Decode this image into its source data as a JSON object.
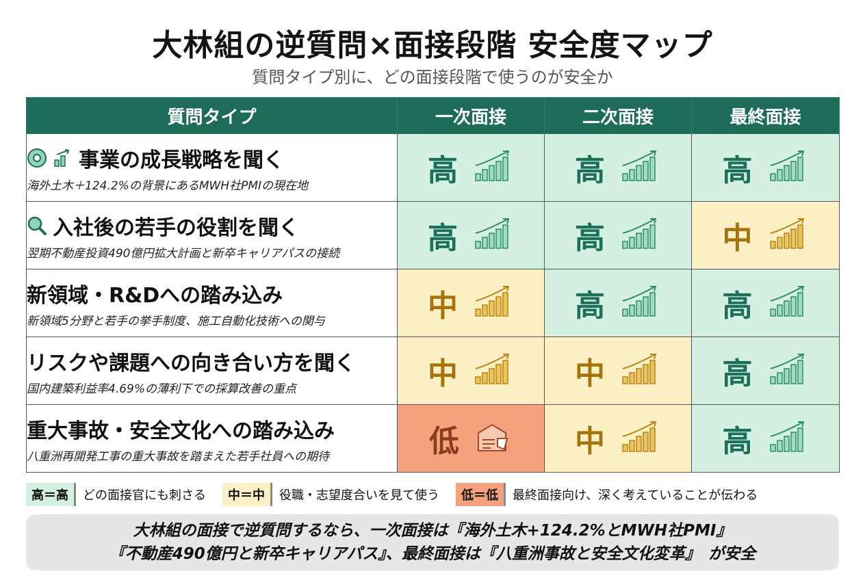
{
  "header": {
    "title": "大林組の逆質問×面接段階 安全度マップ",
    "subtitle": "質問タイプ別に、どの面接段階で使うのが安全か"
  },
  "table": {
    "columns": [
      "質問タイプ",
      "一次面接",
      "二次面接",
      "最終面接"
    ],
    "rows": [
      {
        "title": "事業の成長戦略を聞く",
        "sub": "海外土木＋124.2%の背景にあるMWH社PMIの現在地",
        "icons": [
          "disc-icon",
          "growth-chart-icon"
        ],
        "levels": [
          "高",
          "高",
          "高"
        ],
        "level_keys": [
          "high",
          "high",
          "high"
        ]
      },
      {
        "title": "入社後の若手の役割を聞く",
        "sub": "翌期不動産投資490億円拡大計画と新卒キャリアパスの接続",
        "icons": [
          "search-icon"
        ],
        "levels": [
          "高",
          "高",
          "中"
        ],
        "level_keys": [
          "high",
          "high",
          "mid"
        ]
      },
      {
        "title": "新領域・R&Dへの踏み込み",
        "sub": "新領域5分野と若手の挙手制度、施工自動化技術への関与",
        "icons": [],
        "levels": [
          "中",
          "高",
          "高"
        ],
        "level_keys": [
          "mid",
          "high",
          "high"
        ]
      },
      {
        "title": "リスクや課題への向き合い方を聞く",
        "sub": "国内建築利益率4.69%の薄利下での採算改善の重点",
        "icons": [],
        "levels": [
          "中",
          "中",
          "高"
        ],
        "level_keys": [
          "mid",
          "mid",
          "high"
        ]
      },
      {
        "title": "重大事故・安全文化への踏み込み",
        "sub": "八重洲再開発工事の重大事故を踏まえた若手社員への期待",
        "icons": [],
        "levels": [
          "低",
          "中",
          "高"
        ],
        "level_keys": [
          "low",
          "mid",
          "high"
        ]
      }
    ]
  },
  "legend": {
    "high_chip": "高＝高",
    "high_desc": "どの面接官にも刺さる",
    "mid_chip": "中＝中",
    "mid_desc": "役職・志望度合いを見て使う",
    "low_chip": "低＝低",
    "low_desc": "最終面接向け、深く考えていることが伝わる"
  },
  "summary": {
    "line1": "大林組の面接で逆質問するなら、一次面接は『海外土木+124.2%とMWH社PMI』",
    "line2": "『不動産490億円と新卒キャリアパス』、最終面接は『八重洲事故と安全文化変革』　が安全"
  },
  "colors": {
    "header_bg": "#1e6b5a",
    "high_bg": "#d4f0e0",
    "mid_bg": "#fbefc4",
    "low_bg": "#f4a27e",
    "high_fg": "#1c6f5a",
    "mid_fg": "#a6720e",
    "low_fg": "#8a3d1e"
  }
}
